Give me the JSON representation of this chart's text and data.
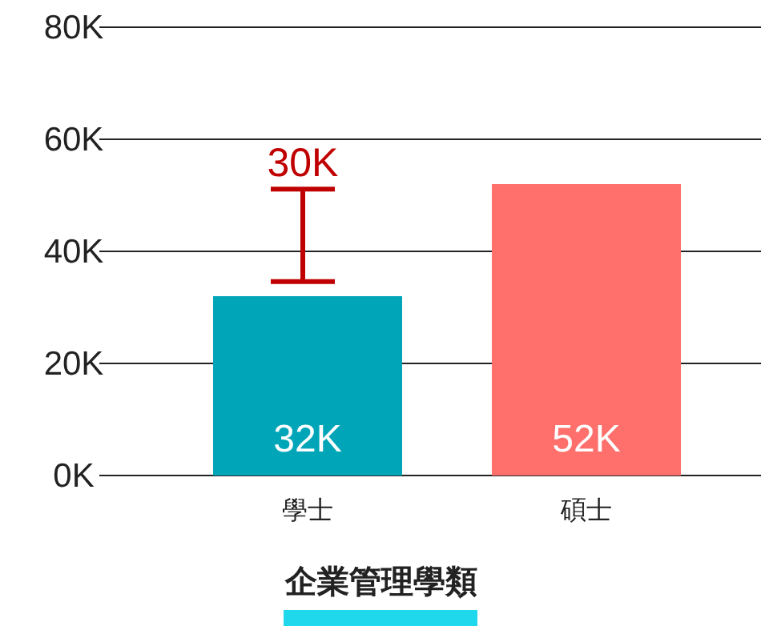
{
  "chart_data": {
    "type": "bar",
    "title": "企業管理學類",
    "categories": [
      "學士",
      "碩士"
    ],
    "values": [
      32,
      52
    ],
    "value_labels": [
      "32K",
      "52K"
    ],
    "colors": [
      "#00a6b8",
      "#ff6f6b"
    ],
    "errors": [
      [
        34.6,
        51.1
      ],
      null
    ],
    "annotations": [
      {
        "text": "30K",
        "x": "學士",
        "y": 51.1
      }
    ],
    "ylim": [
      0,
      80
    ],
    "yticks": [
      {
        "value": 0,
        "label": "0K"
      },
      {
        "value": 20,
        "label": "20K"
      },
      {
        "value": 40,
        "label": "40K"
      },
      {
        "value": 60,
        "label": "60K"
      },
      {
        "value": 80,
        "label": "80K"
      }
    ],
    "grid": "y"
  }
}
